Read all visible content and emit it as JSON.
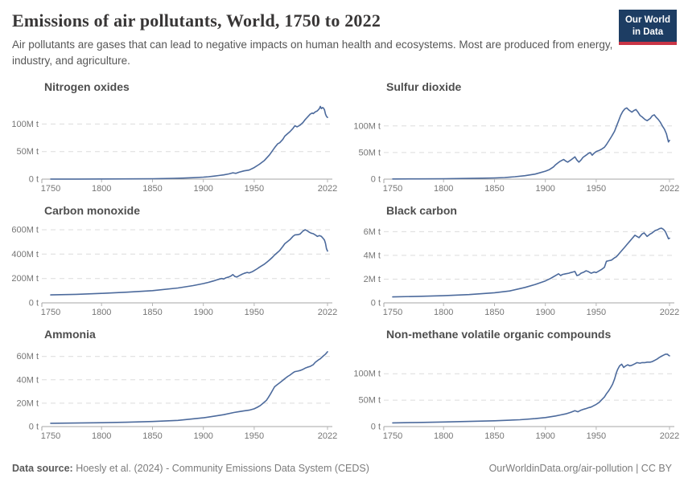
{
  "header": {
    "title": "Emissions of air pollutants, World, 1750 to 2022",
    "subtitle": "Air pollutants are gases that can lead to negative impacts on human health and ecosystems. Most are produced from energy, industry, and agriculture.",
    "logo": {
      "line1": "Our World",
      "line2": "in Data",
      "bg": "#1d3d63",
      "accent": "#c93546"
    }
  },
  "footer": {
    "source_label": "Data source:",
    "source_text": " Hoesly et al. (2024) - Community Emissions Data System (CEDS)",
    "link_text": "OurWorldinData.org/air-pollution | CC BY"
  },
  "colors": {
    "line": "#4C6A9C",
    "grid": "#dcdcdc",
    "axis": "#a6a6a6",
    "axis_tick": "#b5b5b5",
    "tick_label": "#767676",
    "panel_title": "#4e4e4e"
  },
  "chart_data": [
    {
      "type": "line",
      "title": "Nitrogen oxides",
      "unit": "t",
      "xlabel": "",
      "ylabel": "",
      "xrange": [
        1750,
        2022
      ],
      "ymax": 140,
      "xticks": [
        1750,
        1800,
        1850,
        1900,
        1950,
        2022
      ],
      "yticks": [
        {
          "value": 0,
          "label": "0 t"
        },
        {
          "value": 50,
          "label": "50M t"
        },
        {
          "value": 100,
          "label": "100M t"
        }
      ],
      "x": [
        1750,
        1775,
        1800,
        1825,
        1850,
        1860,
        1870,
        1880,
        1890,
        1900,
        1905,
        1910,
        1915,
        1920,
        1925,
        1929,
        1932,
        1935,
        1940,
        1945,
        1950,
        1955,
        1960,
        1965,
        1970,
        1973,
        1975,
        1978,
        1980,
        1983,
        1985,
        1988,
        1990,
        1992,
        1995,
        1998,
        2000,
        2003,
        2005,
        2007,
        2008,
        2010,
        2012,
        2014,
        2015,
        2016,
        2017,
        2018,
        2019,
        2020,
        2021,
        2022
      ],
      "values": [
        0.1,
        0.2,
        0.3,
        0.5,
        0.8,
        1.0,
        1.4,
        1.9,
        2.6,
        3.6,
        4.4,
        5.4,
        6.6,
        7.8,
        9.5,
        11.5,
        10.5,
        12.5,
        15,
        16.5,
        21,
        27,
        34,
        44,
        57,
        64,
        66,
        72,
        78,
        83,
        86,
        92,
        97,
        95,
        98,
        103,
        108,
        114,
        118,
        120,
        119,
        122,
        124,
        128,
        132,
        128,
        130,
        129,
        126,
        118,
        114,
        112
      ]
    },
    {
      "type": "line",
      "title": "Sulfur dioxide",
      "unit": "t",
      "xlabel": "",
      "ylabel": "",
      "xrange": [
        1750,
        2022
      ],
      "ymax": 145,
      "xticks": [
        1750,
        1800,
        1850,
        1900,
        1950,
        2022
      ],
      "yticks": [
        {
          "value": 0,
          "label": "0 t"
        },
        {
          "value": 50,
          "label": "50M t"
        },
        {
          "value": 100,
          "label": "100M t"
        }
      ],
      "x": [
        1750,
        1775,
        1800,
        1825,
        1850,
        1860,
        1870,
        1880,
        1890,
        1900,
        1904,
        1908,
        1910,
        1912,
        1914,
        1916,
        1918,
        1920,
        1922,
        1925,
        1927,
        1929,
        1931,
        1933,
        1935,
        1937,
        1940,
        1942,
        1944,
        1946,
        1948,
        1950,
        1953,
        1955,
        1958,
        1960,
        1963,
        1965,
        1968,
        1970,
        1972,
        1974,
        1976,
        1978,
        1980,
        1982,
        1985,
        1987,
        1989,
        1991,
        1993,
        1995,
        1998,
        2000,
        2003,
        2005,
        2007,
        2009,
        2011,
        2013,
        2015,
        2017,
        2019,
        2020,
        2021,
        2022
      ],
      "values": [
        0.3,
        0.5,
        0.8,
        1.3,
        2.2,
        3,
        4.5,
        6.5,
        9.5,
        15,
        18,
        23,
        27,
        30,
        33,
        35,
        37,
        34,
        32,
        36,
        39,
        42,
        36,
        32,
        36,
        41,
        45,
        48,
        50,
        45,
        49,
        52,
        54,
        56,
        60,
        65,
        74,
        80,
        90,
        100,
        110,
        120,
        127,
        132,
        134,
        130,
        126,
        129,
        131,
        126,
        120,
        117,
        112,
        110,
        114,
        119,
        121,
        116,
        112,
        107,
        100,
        94,
        85,
        77,
        70,
        73
      ]
    },
    {
      "type": "line",
      "title": "Carbon monoxide",
      "unit": "t",
      "xlabel": "",
      "ylabel": "",
      "xrange": [
        1750,
        2022
      ],
      "ymax": 633,
      "xticks": [
        1750,
        1800,
        1850,
        1900,
        1950,
        2022
      ],
      "yticks": [
        {
          "value": 0,
          "label": "0 t"
        },
        {
          "value": 200,
          "label": "200M t"
        },
        {
          "value": 400,
          "label": "400M t"
        },
        {
          "value": 600,
          "label": "600M t"
        }
      ],
      "x": [
        1750,
        1775,
        1800,
        1825,
        1850,
        1875,
        1890,
        1900,
        1905,
        1910,
        1913,
        1916,
        1918,
        1920,
        1922,
        1925,
        1927,
        1929,
        1931,
        1933,
        1935,
        1938,
        1940,
        1943,
        1945,
        1948,
        1950,
        1953,
        1955,
        1958,
        1960,
        1963,
        1965,
        1968,
        1970,
        1973,
        1975,
        1978,
        1980,
        1983,
        1985,
        1988,
        1990,
        1993,
        1995,
        1998,
        2000,
        2002,
        2004,
        2006,
        2008,
        2010,
        2012,
        2014,
        2016,
        2018,
        2019,
        2020,
        2021,
        2022
      ],
      "values": [
        65,
        70,
        78,
        88,
        100,
        122,
        142,
        158,
        168,
        180,
        188,
        196,
        200,
        196,
        205,
        212,
        220,
        232,
        216,
        212,
        222,
        235,
        242,
        250,
        246,
        255,
        265,
        280,
        292,
        308,
        318,
        338,
        352,
        375,
        392,
        415,
        430,
        462,
        485,
        505,
        518,
        545,
        558,
        560,
        565,
        590,
        600,
        592,
        580,
        572,
        568,
        558,
        545,
        552,
        545,
        527,
        515,
        488,
        445,
        425
      ]
    },
    {
      "type": "line",
      "title": "Black carbon",
      "unit": "t",
      "xlabel": "",
      "ylabel": "",
      "xrange": [
        1750,
        2022
      ],
      "ymax": 6.5,
      "xticks": [
        1750,
        1800,
        1850,
        1900,
        1950,
        2022
      ],
      "yticks": [
        {
          "value": 0,
          "label": "0 t"
        },
        {
          "value": 2,
          "label": "2M t"
        },
        {
          "value": 4,
          "label": "4M t"
        },
        {
          "value": 6,
          "label": "6M t"
        }
      ],
      "x": [
        1750,
        1775,
        1800,
        1825,
        1850,
        1865,
        1880,
        1890,
        1900,
        1905,
        1908,
        1911,
        1913,
        1915,
        1917,
        1920,
        1923,
        1925,
        1927,
        1929,
        1931,
        1933,
        1935,
        1938,
        1940,
        1942,
        1945,
        1948,
        1950,
        1953,
        1955,
        1958,
        1960,
        1962,
        1965,
        1968,
        1970,
        1973,
        1975,
        1978,
        1980,
        1983,
        1985,
        1988,
        1990,
        1992,
        1995,
        1997,
        2000,
        2003,
        2005,
        2008,
        2010,
        2012,
        2014,
        2016,
        2018,
        2020,
        2021,
        2022
      ],
      "values": [
        0.5,
        0.55,
        0.6,
        0.7,
        0.85,
        1.0,
        1.3,
        1.55,
        1.85,
        2.05,
        2.2,
        2.35,
        2.45,
        2.3,
        2.4,
        2.45,
        2.5,
        2.55,
        2.6,
        2.65,
        2.3,
        2.35,
        2.5,
        2.6,
        2.7,
        2.65,
        2.5,
        2.6,
        2.55,
        2.7,
        2.8,
        3.0,
        3.5,
        3.55,
        3.6,
        3.8,
        3.9,
        4.2,
        4.4,
        4.7,
        4.9,
        5.2,
        5.4,
        5.7,
        5.6,
        5.5,
        5.8,
        5.9,
        5.6,
        5.8,
        5.9,
        6.1,
        6.15,
        6.25,
        6.3,
        6.2,
        6.0,
        5.6,
        5.4,
        5.45
      ]
    },
    {
      "type": "line",
      "title": "Ammonia",
      "unit": "t",
      "xlabel": "",
      "ylabel": "",
      "xrange": [
        1750,
        2022
      ],
      "ymax": 66,
      "xticks": [
        1750,
        1800,
        1850,
        1900,
        1950,
        2022
      ],
      "yticks": [
        {
          "value": 0,
          "label": "0 t"
        },
        {
          "value": 20,
          "label": "20M t"
        },
        {
          "value": 40,
          "label": "40M t"
        },
        {
          "value": 60,
          "label": "60M t"
        }
      ],
      "x": [
        1750,
        1775,
        1800,
        1825,
        1850,
        1875,
        1900,
        1910,
        1920,
        1930,
        1935,
        1940,
        1945,
        1950,
        1953,
        1956,
        1958,
        1960,
        1962,
        1964,
        1966,
        1968,
        1970,
        1972,
        1975,
        1978,
        1980,
        1983,
        1985,
        1988,
        1990,
        1993,
        1995,
        1998,
        2000,
        2003,
        2005,
        2008,
        2010,
        2013,
        2015,
        2018,
        2020,
        2022
      ],
      "values": [
        2.8,
        3.0,
        3.3,
        3.7,
        4.3,
        5.3,
        7.5,
        8.8,
        10.2,
        12,
        12.8,
        13.5,
        14,
        15.2,
        16.5,
        18,
        19.5,
        21,
        22.5,
        25,
        28,
        31,
        34,
        35.5,
        37.5,
        39.5,
        41,
        43,
        44,
        46,
        47,
        47.5,
        48,
        49,
        50,
        51,
        51.5,
        53,
        55,
        57,
        58,
        60.5,
        62,
        64
      ]
    },
    {
      "type": "line",
      "title": "Non-methane volatile organic compounds",
      "unit": "t",
      "xlabel": "",
      "ylabel": "",
      "xrange": [
        1750,
        2022
      ],
      "ymax": 146,
      "xticks": [
        1750,
        1800,
        1850,
        1900,
        1950,
        2022
      ],
      "yticks": [
        {
          "value": 0,
          "label": "0 t"
        },
        {
          "value": 50,
          "label": "50M t"
        },
        {
          "value": 100,
          "label": "100M t"
        }
      ],
      "x": [
        1750,
        1775,
        1800,
        1825,
        1850,
        1875,
        1890,
        1900,
        1910,
        1915,
        1920,
        1925,
        1929,
        1932,
        1935,
        1938,
        1940,
        1943,
        1945,
        1948,
        1950,
        1953,
        1955,
        1958,
        1960,
        1962,
        1964,
        1966,
        1968,
        1970,
        1971,
        1973,
        1975,
        1977,
        1979,
        1981,
        1983,
        1985,
        1988,
        1990,
        1993,
        1995,
        1998,
        2000,
        2003,
        2005,
        2008,
        2010,
        2012,
        2014,
        2016,
        2018,
        2020,
        2021,
        2022
      ],
      "values": [
        7,
        7.8,
        8.7,
        9.8,
        11,
        13,
        15,
        17,
        20,
        22,
        24,
        27,
        30,
        28,
        31,
        33,
        34,
        36,
        37,
        40,
        42,
        46,
        50,
        56,
        62,
        67,
        73,
        80,
        90,
        103,
        108,
        115,
        118,
        112,
        115,
        117,
        115,
        116,
        119,
        121,
        120,
        121,
        121,
        122,
        122,
        123,
        126,
        128,
        131,
        133,
        135,
        137,
        137,
        135,
        134
      ]
    }
  ]
}
